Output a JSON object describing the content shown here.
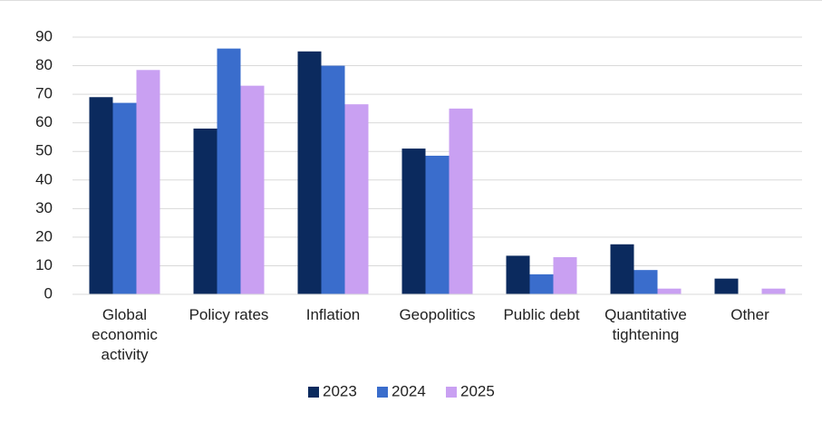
{
  "chart_data": {
    "type": "bar",
    "categories": [
      "Global economic activity",
      "Policy rates",
      "Inflation",
      "Geopolitics",
      "Public debt",
      "Quantitative tightening",
      "Other"
    ],
    "series": [
      {
        "name": "2023",
        "color": "#0b2a5e",
        "values": [
          69,
          58,
          85,
          51,
          13.5,
          17.5,
          5.5
        ]
      },
      {
        "name": "2024",
        "color": "#3a6dcc",
        "values": [
          67,
          86,
          80,
          48.5,
          7,
          8.5,
          0
        ]
      },
      {
        "name": "2025",
        "color": "#c9a0f2",
        "values": [
          78.5,
          73,
          66.5,
          65,
          13,
          2,
          2
        ]
      }
    ],
    "ylim": [
      0,
      90
    ],
    "yticks": [
      0,
      10,
      20,
      30,
      40,
      50,
      60,
      70,
      80,
      90
    ],
    "grid": true,
    "legend": "bottom"
  }
}
